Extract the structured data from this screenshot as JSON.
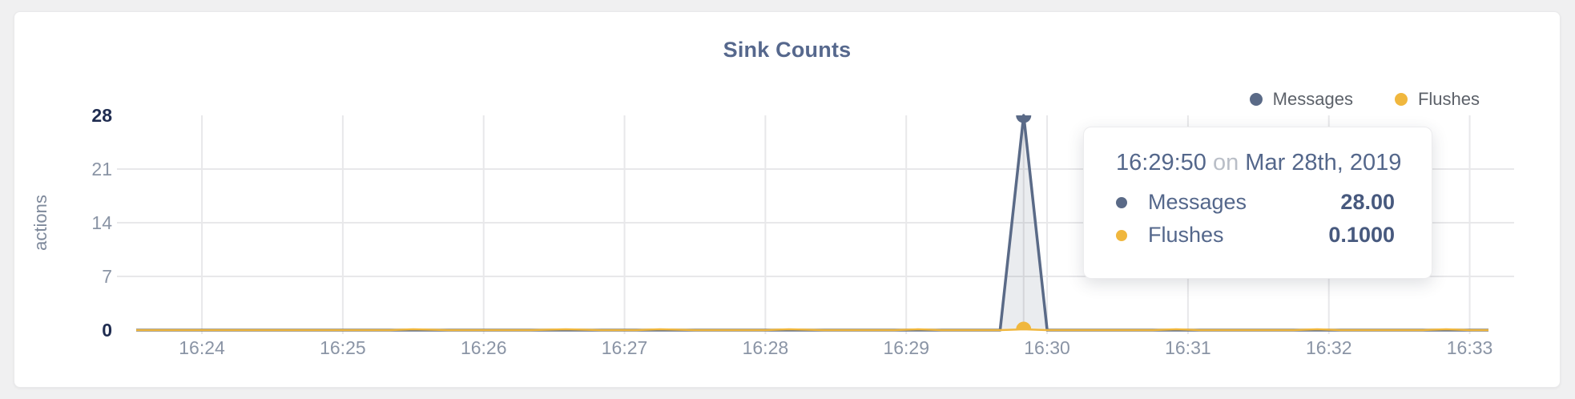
{
  "page": {
    "background_color": "#f0f0f1",
    "card_color": "#ffffff"
  },
  "chart_data": {
    "type": "line",
    "title": "Sink Counts",
    "xlabel": "",
    "ylabel": "actions",
    "ylim": [
      0,
      28
    ],
    "y_tick_labels": [
      "0",
      "7",
      "14",
      "21",
      "28"
    ],
    "highlighted_y_tick_labels": [
      "0",
      "28"
    ],
    "x_tick_labels": [
      "16:24",
      "16:25",
      "16:26",
      "16:27",
      "16:28",
      "16:29",
      "16:30",
      "16:31",
      "16:32",
      "16:33"
    ],
    "x_domain": [
      "16:23:32",
      "16:33:08"
    ],
    "grid": true,
    "legend_position": "top-right",
    "date": "Mar 28th, 2019",
    "series": [
      {
        "name": "Messages",
        "color": "#5a6a87",
        "area_fill": "rgba(90,106,135,0.13)",
        "points": [
          [
            "16:23:32",
            0
          ],
          [
            "16:29:40",
            0
          ],
          [
            "16:29:50",
            28
          ],
          [
            "16:30:00",
            0
          ],
          [
            "16:33:08",
            0
          ]
        ]
      },
      {
        "name": "Flushes",
        "color": "#f0b73e",
        "area_fill": null,
        "points": [
          [
            "16:23:32",
            0
          ],
          [
            "16:25:20",
            0
          ],
          [
            "16:25:30",
            0.1
          ],
          [
            "16:25:45",
            0
          ],
          [
            "16:26:20",
            0
          ],
          [
            "16:26:35",
            0.1
          ],
          [
            "16:26:50",
            0
          ],
          [
            "16:27:05",
            0
          ],
          [
            "16:27:15",
            0.1
          ],
          [
            "16:27:30",
            0
          ],
          [
            "16:28:00",
            0
          ],
          [
            "16:28:10",
            0.1
          ],
          [
            "16:28:25",
            0
          ],
          [
            "16:28:55",
            0
          ],
          [
            "16:29:05",
            0.1
          ],
          [
            "16:29:15",
            0
          ],
          [
            "16:29:40",
            0
          ],
          [
            "16:29:50",
            0.1
          ],
          [
            "16:30:00",
            0
          ],
          [
            "16:30:45",
            0
          ],
          [
            "16:30:55",
            0.1
          ],
          [
            "16:31:05",
            0
          ],
          [
            "16:31:45",
            0
          ],
          [
            "16:31:55",
            0.1
          ],
          [
            "16:32:05",
            0
          ],
          [
            "16:32:40",
            0
          ],
          [
            "16:32:50",
            0.1
          ],
          [
            "16:33:00",
            0
          ],
          [
            "16:33:08",
            0
          ]
        ]
      }
    ],
    "hover": {
      "time": "16:29:50",
      "crosshair": true,
      "values": {
        "Messages": 28,
        "Flushes": 0.1
      }
    }
  },
  "legend": {
    "items": [
      {
        "label": "Messages",
        "color": "#5a6a87"
      },
      {
        "label": "Flushes",
        "color": "#f0b73e"
      }
    ]
  },
  "tooltip": {
    "time": "16:29:50",
    "connector": "on",
    "date": "Mar 28th, 2019",
    "rows": [
      {
        "label": "Messages",
        "value": "28.00",
        "color": "#5a6a87"
      },
      {
        "label": "Flushes",
        "value": "0.1000",
        "color": "#f0b73e"
      }
    ]
  },
  "style": {
    "grid_color": "#e8e8ea",
    "tick_label_color": "#8a94a5",
    "highlighted_tick_color": "#1f2c50",
    "axis_title_color": "#7e899b",
    "crosshair_color": "#d4d5d9"
  }
}
